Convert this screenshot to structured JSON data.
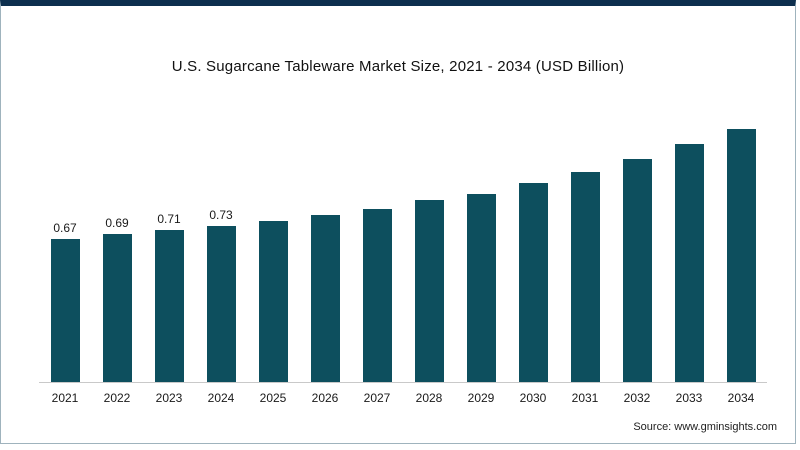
{
  "title": "U.S. Sugarcane Tableware Market Size, 2021 - 2034 (USD Billion)",
  "source": {
    "text": "Source: www.gminsights.com"
  },
  "colors": {
    "bar": "#0d4f5e",
    "frame_top": "#0d2f4e",
    "axis_line": "#c9c9c9"
  },
  "chart_data": {
    "type": "bar",
    "title": "U.S. Sugarcane Tableware Market Size, 2021 - 2034 (USD Billion)",
    "categories": [
      "2021",
      "2022",
      "2023",
      "2024",
      "2025",
      "2026",
      "2027",
      "2028",
      "2029",
      "2030",
      "2031",
      "2032",
      "2033",
      "2034"
    ],
    "values": [
      0.67,
      0.69,
      0.71,
      0.73,
      0.75,
      0.78,
      0.81,
      0.85,
      0.88,
      0.93,
      0.98,
      1.04,
      1.11,
      1.18
    ],
    "data_labels": [
      "0.67",
      "0.69",
      "0.71",
      "0.73",
      "",
      "",
      "",
      "",
      "",
      "",
      "",
      "",
      "",
      ""
    ],
    "xlabel": "",
    "ylabel": "",
    "ylim": [
      0,
      1.25
    ],
    "grid": false,
    "legend": false,
    "y_axis_visible": false,
    "bar_color": "#0d4f5e"
  }
}
